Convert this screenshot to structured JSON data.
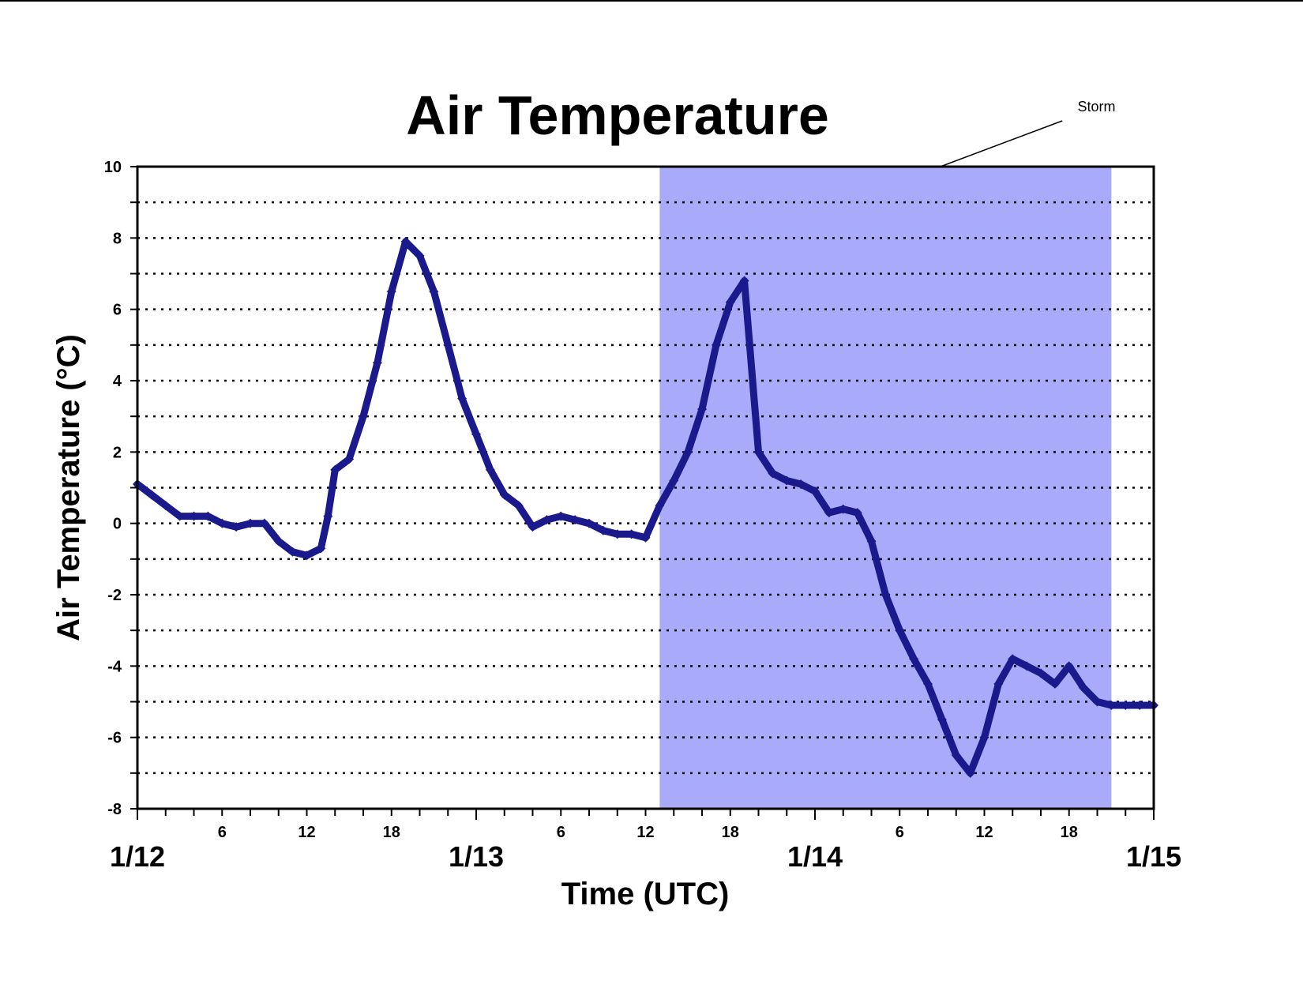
{
  "chart_data": {
    "type": "scatter",
    "title": "Air Temperature",
    "xlabel": "Time (UTC)",
    "ylabel": "Air Temperature (°C)",
    "ylim": [
      -8,
      10
    ],
    "yticks": [
      "10",
      "8",
      "6",
      "4",
      "2",
      "0",
      "-2",
      "-4",
      "-6",
      "-8"
    ],
    "xlim_hours": [
      0,
      72
    ],
    "x_hour_ticks": [
      {
        "h": 6,
        "label": "6"
      },
      {
        "h": 12,
        "label": "12"
      },
      {
        "h": 18,
        "label": "18"
      },
      {
        "h": 30,
        "label": "6"
      },
      {
        "h": 36,
        "label": "12"
      },
      {
        "h": 42,
        "label": "18"
      },
      {
        "h": 54,
        "label": "6"
      },
      {
        "h": 60,
        "label": "12"
      },
      {
        "h": 66,
        "label": "18"
      }
    ],
    "x_date_ticks": [
      {
        "h": 0,
        "label": "1/12"
      },
      {
        "h": 24,
        "label": "1/13"
      },
      {
        "h": 48,
        "label": "1/14"
      },
      {
        "h": 72,
        "label": "1/15"
      }
    ],
    "grid": "horizontal dotted",
    "annotation": {
      "label": "Storm",
      "start_hour": 37,
      "end_hour": 69,
      "color": "#a9abfa"
    },
    "series_color": "#1a1a8c",
    "x": [
      "1/12 00:00",
      "1/12 01:00",
      "1/12 02:00",
      "1/12 03:00",
      "1/12 04:00",
      "1/12 05:00",
      "1/12 06:00",
      "1/12 07:00",
      "1/12 08:00",
      "1/12 09:00",
      "1/12 10:00",
      "1/12 11:00",
      "1/12 12:00",
      "1/12 13:00",
      "1/12 13:30",
      "1/12 14:00",
      "1/12 15:00",
      "1/12 16:00",
      "1/12 17:00",
      "1/12 18:00",
      "1/12 19:00",
      "1/12 20:00",
      "1/12 21:00",
      "1/12 22:00",
      "1/12 23:00",
      "1/13 00:00",
      "1/13 01:00",
      "1/13 02:00",
      "1/13 03:00",
      "1/13 04:00",
      "1/13 05:00",
      "1/13 06:00",
      "1/13 07:00",
      "1/13 08:00",
      "1/13 09:00",
      "1/13 10:00",
      "1/13 11:00",
      "1/13 12:00",
      "1/13 13:00",
      "1/13 14:00",
      "1/13 15:00",
      "1/13 16:00",
      "1/13 17:00",
      "1/13 18:00",
      "1/13 19:00",
      "1/13 20:00",
      "1/13 21:00",
      "1/13 22:00",
      "1/13 23:00",
      "1/14 00:00",
      "1/14 01:00",
      "1/14 02:00",
      "1/14 03:00",
      "1/14 04:00",
      "1/14 05:00",
      "1/14 06:00",
      "1/14 07:00",
      "1/14 08:00",
      "1/14 09:00",
      "1/14 10:00",
      "1/14 11:00",
      "1/14 12:00",
      "1/14 13:00",
      "1/14 14:00",
      "1/14 15:00",
      "1/14 16:00",
      "1/14 17:00",
      "1/14 18:00",
      "1/14 19:00",
      "1/14 20:00",
      "1/14 21:00",
      "1/14 22:00",
      "1/14 23:00",
      "1/15 00:00"
    ],
    "y": [
      1.1,
      0.8,
      0.5,
      0.2,
      0.2,
      0.2,
      0.0,
      -0.1,
      0.0,
      0.0,
      -0.5,
      -0.8,
      -0.9,
      -0.7,
      0.2,
      1.5,
      1.8,
      3.0,
      4.5,
      6.5,
      7.9,
      7.5,
      6.5,
      5.0,
      3.5,
      2.5,
      1.5,
      0.8,
      0.5,
      -0.1,
      0.1,
      0.2,
      0.1,
      0.0,
      -0.2,
      -0.3,
      -0.3,
      -0.4,
      0.5,
      1.2,
      2.0,
      3.2,
      5.0,
      6.2,
      6.8,
      2.0,
      1.4,
      1.2,
      1.1,
      0.9,
      0.3,
      0.4,
      0.3,
      -0.5,
      -2.0,
      -3.0,
      -3.8,
      -4.5,
      -5.5,
      -6.5,
      -7.0,
      -6.0,
      -4.5,
      -3.8,
      -4.0,
      -4.2,
      -4.5,
      -4.0,
      -4.6,
      -5.0,
      -5.1,
      -5.1,
      -5.1,
      -5.1
    ]
  }
}
